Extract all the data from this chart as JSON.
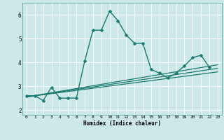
{
  "background_color": "#cce8e8",
  "grid_color": "#b0d4d4",
  "line_color": "#1a7a6e",
  "xlabel": "Humidex (Indice chaleur)",
  "xlim": [
    -0.5,
    23.5
  ],
  "ylim": [
    1.8,
    6.5
  ],
  "yticks": [
    2,
    3,
    4,
    5,
    6
  ],
  "xticks": [
    0,
    1,
    2,
    3,
    4,
    5,
    6,
    7,
    8,
    9,
    10,
    11,
    12,
    13,
    14,
    15,
    16,
    17,
    18,
    19,
    20,
    21,
    22,
    23
  ],
  "series": [
    {
      "x": [
        0,
        1,
        2,
        3,
        4,
        5,
        6,
        7,
        8,
        9,
        10,
        11,
        12,
        13,
        14,
        15,
        16,
        17,
        18,
        19,
        20,
        21,
        22
      ],
      "y": [
        2.6,
        2.6,
        2.4,
        2.95,
        2.5,
        2.5,
        2.5,
        4.05,
        5.35,
        5.35,
        6.15,
        5.75,
        5.15,
        4.8,
        4.8,
        3.7,
        3.55,
        3.35,
        3.55,
        3.85,
        4.2,
        4.3,
        3.8
      ],
      "marker": "D",
      "markersize": 2.5,
      "linewidth": 1.0
    },
    {
      "x": [
        0,
        23
      ],
      "y": [
        2.55,
        3.6
      ],
      "marker": null,
      "linewidth": 0.9
    },
    {
      "x": [
        0,
        23
      ],
      "y": [
        2.55,
        3.75
      ],
      "marker": null,
      "linewidth": 0.9
    },
    {
      "x": [
        0,
        23
      ],
      "y": [
        2.55,
        3.9
      ],
      "marker": null,
      "linewidth": 0.9
    }
  ]
}
